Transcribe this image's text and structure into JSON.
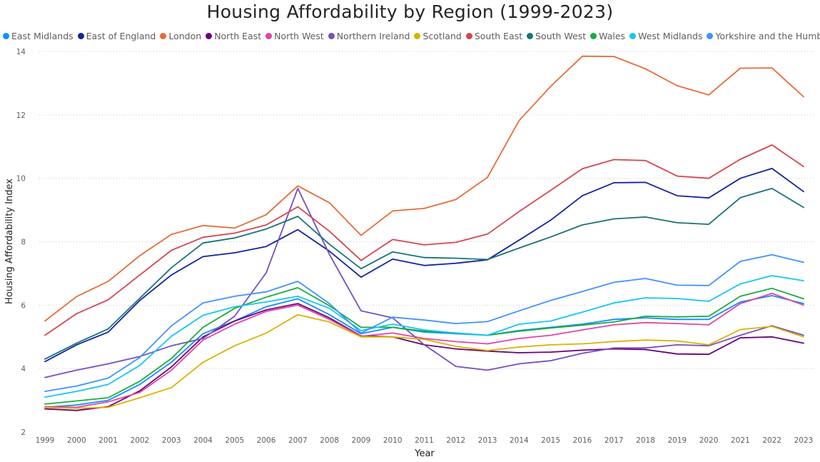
{
  "chart_data": {
    "type": "line",
    "title": "Housing Affordability by Region (1999-2023)",
    "xlabel": "Year",
    "ylabel": "Housing Affordability Index",
    "ylim": [
      2,
      14
    ],
    "yticks": [
      2,
      4,
      6,
      8,
      10,
      12,
      14
    ],
    "grid": true,
    "legend_position": "top-left",
    "x": [
      1999,
      2000,
      2001,
      2002,
      2003,
      2004,
      2005,
      2006,
      2007,
      2008,
      2009,
      2010,
      2011,
      2012,
      2013,
      2014,
      2015,
      2016,
      2017,
      2018,
      2019,
      2020,
      2021,
      2022,
      2023
    ],
    "series": [
      {
        "name": "East Midlands",
        "color": "#118DFF",
        "values": [
          2.78,
          2.85,
          3.0,
          3.5,
          4.2,
          5.1,
          5.5,
          5.95,
          6.2,
          5.7,
          5.1,
          5.3,
          5.15,
          5.1,
          5.05,
          5.2,
          5.3,
          5.4,
          5.55,
          5.6,
          5.55,
          5.55,
          6.1,
          6.3,
          6.05
        ]
      },
      {
        "name": "East of England",
        "color": "#12239E",
        "values": [
          4.22,
          4.75,
          5.15,
          6.15,
          6.95,
          7.53,
          7.65,
          7.85,
          8.38,
          7.7,
          6.88,
          7.45,
          7.25,
          7.32,
          7.43,
          8.05,
          8.68,
          9.45,
          9.86,
          9.87,
          9.45,
          9.38,
          10.0,
          10.31,
          9.58
        ]
      },
      {
        "name": "London",
        "color": "#E66C37",
        "values": [
          5.5,
          6.27,
          6.75,
          7.56,
          8.23,
          8.51,
          8.43,
          8.85,
          9.76,
          9.23,
          8.2,
          8.97,
          9.05,
          9.33,
          10.03,
          11.82,
          12.9,
          13.85,
          13.84,
          13.45,
          12.92,
          12.63,
          13.47,
          13.48,
          12.57
        ]
      },
      {
        "name": "North East",
        "color": "#6B007B",
        "values": [
          2.73,
          2.68,
          2.8,
          3.3,
          4.05,
          5.0,
          5.5,
          5.85,
          6.05,
          5.6,
          5.03,
          5.0,
          4.75,
          4.62,
          4.55,
          4.5,
          4.52,
          4.58,
          4.62,
          4.6,
          4.46,
          4.45,
          4.97,
          5.0,
          4.8
        ]
      },
      {
        "name": "North West",
        "color": "#E044A7",
        "values": [
          2.8,
          2.78,
          2.95,
          3.25,
          3.95,
          4.9,
          5.4,
          5.8,
          6.0,
          5.55,
          5.02,
          5.12,
          4.95,
          4.85,
          4.78,
          4.95,
          5.05,
          5.22,
          5.38,
          5.45,
          5.42,
          5.38,
          6.05,
          6.37,
          6.0
        ]
      },
      {
        "name": "Northern Ireland",
        "color": "#744EC2",
        "values": [
          3.72,
          3.95,
          4.15,
          4.38,
          4.72,
          4.95,
          5.65,
          7.02,
          9.68,
          7.6,
          5.82,
          5.6,
          4.75,
          4.07,
          3.95,
          4.15,
          4.25,
          4.48,
          4.65,
          4.65,
          4.75,
          4.72,
          5.05,
          5.35,
          5.05
        ]
      },
      {
        "name": "Scotland",
        "color": "#D9B300",
        "values": [
          2.77,
          2.75,
          2.78,
          3.08,
          3.4,
          4.2,
          4.72,
          5.12,
          5.7,
          5.47,
          5.0,
          5.0,
          4.92,
          4.7,
          4.57,
          4.68,
          4.75,
          4.78,
          4.85,
          4.9,
          4.87,
          4.75,
          5.23,
          5.33,
          5.0
        ]
      },
      {
        "name": "South East",
        "color": "#D64550",
        "values": [
          5.05,
          5.73,
          6.17,
          6.95,
          7.73,
          8.14,
          8.27,
          8.53,
          9.1,
          8.33,
          7.41,
          8.07,
          7.9,
          7.98,
          8.24,
          8.95,
          9.62,
          10.3,
          10.59,
          10.56,
          10.07,
          10.0,
          10.6,
          11.05,
          10.37
        ]
      },
      {
        "name": "South West",
        "color": "#197278",
        "values": [
          4.3,
          4.8,
          5.25,
          6.22,
          7.18,
          7.96,
          8.12,
          8.4,
          8.8,
          7.92,
          7.15,
          7.68,
          7.5,
          7.48,
          7.44,
          7.8,
          8.15,
          8.53,
          8.72,
          8.78,
          8.6,
          8.55,
          9.39,
          9.68,
          9.08
        ]
      },
      {
        "name": "Wales",
        "color": "#1AAB40",
        "values": [
          2.88,
          2.98,
          3.08,
          3.6,
          4.32,
          5.3,
          5.9,
          6.25,
          6.55,
          5.98,
          5.3,
          5.3,
          5.18,
          5.12,
          5.05,
          5.18,
          5.28,
          5.37,
          5.47,
          5.65,
          5.63,
          5.65,
          6.28,
          6.53,
          6.2
        ]
      },
      {
        "name": "West Midlands",
        "color": "#15C6F4",
        "values": [
          3.1,
          3.28,
          3.5,
          4.1,
          5.02,
          5.68,
          5.95,
          6.1,
          6.28,
          5.9,
          5.2,
          5.4,
          5.22,
          5.12,
          5.05,
          5.4,
          5.5,
          5.78,
          6.07,
          6.23,
          6.21,
          6.12,
          6.67,
          6.93,
          6.77
        ]
      },
      {
        "name": "Yorkshire and the Humber",
        "color": "#4092FF",
        "values": [
          3.28,
          3.45,
          3.7,
          4.35,
          5.35,
          6.07,
          6.28,
          6.42,
          6.75,
          6.05,
          5.12,
          5.62,
          5.53,
          5.42,
          5.48,
          5.82,
          6.15,
          6.43,
          6.72,
          6.84,
          6.63,
          6.62,
          7.38,
          7.59,
          7.35
        ]
      }
    ]
  }
}
